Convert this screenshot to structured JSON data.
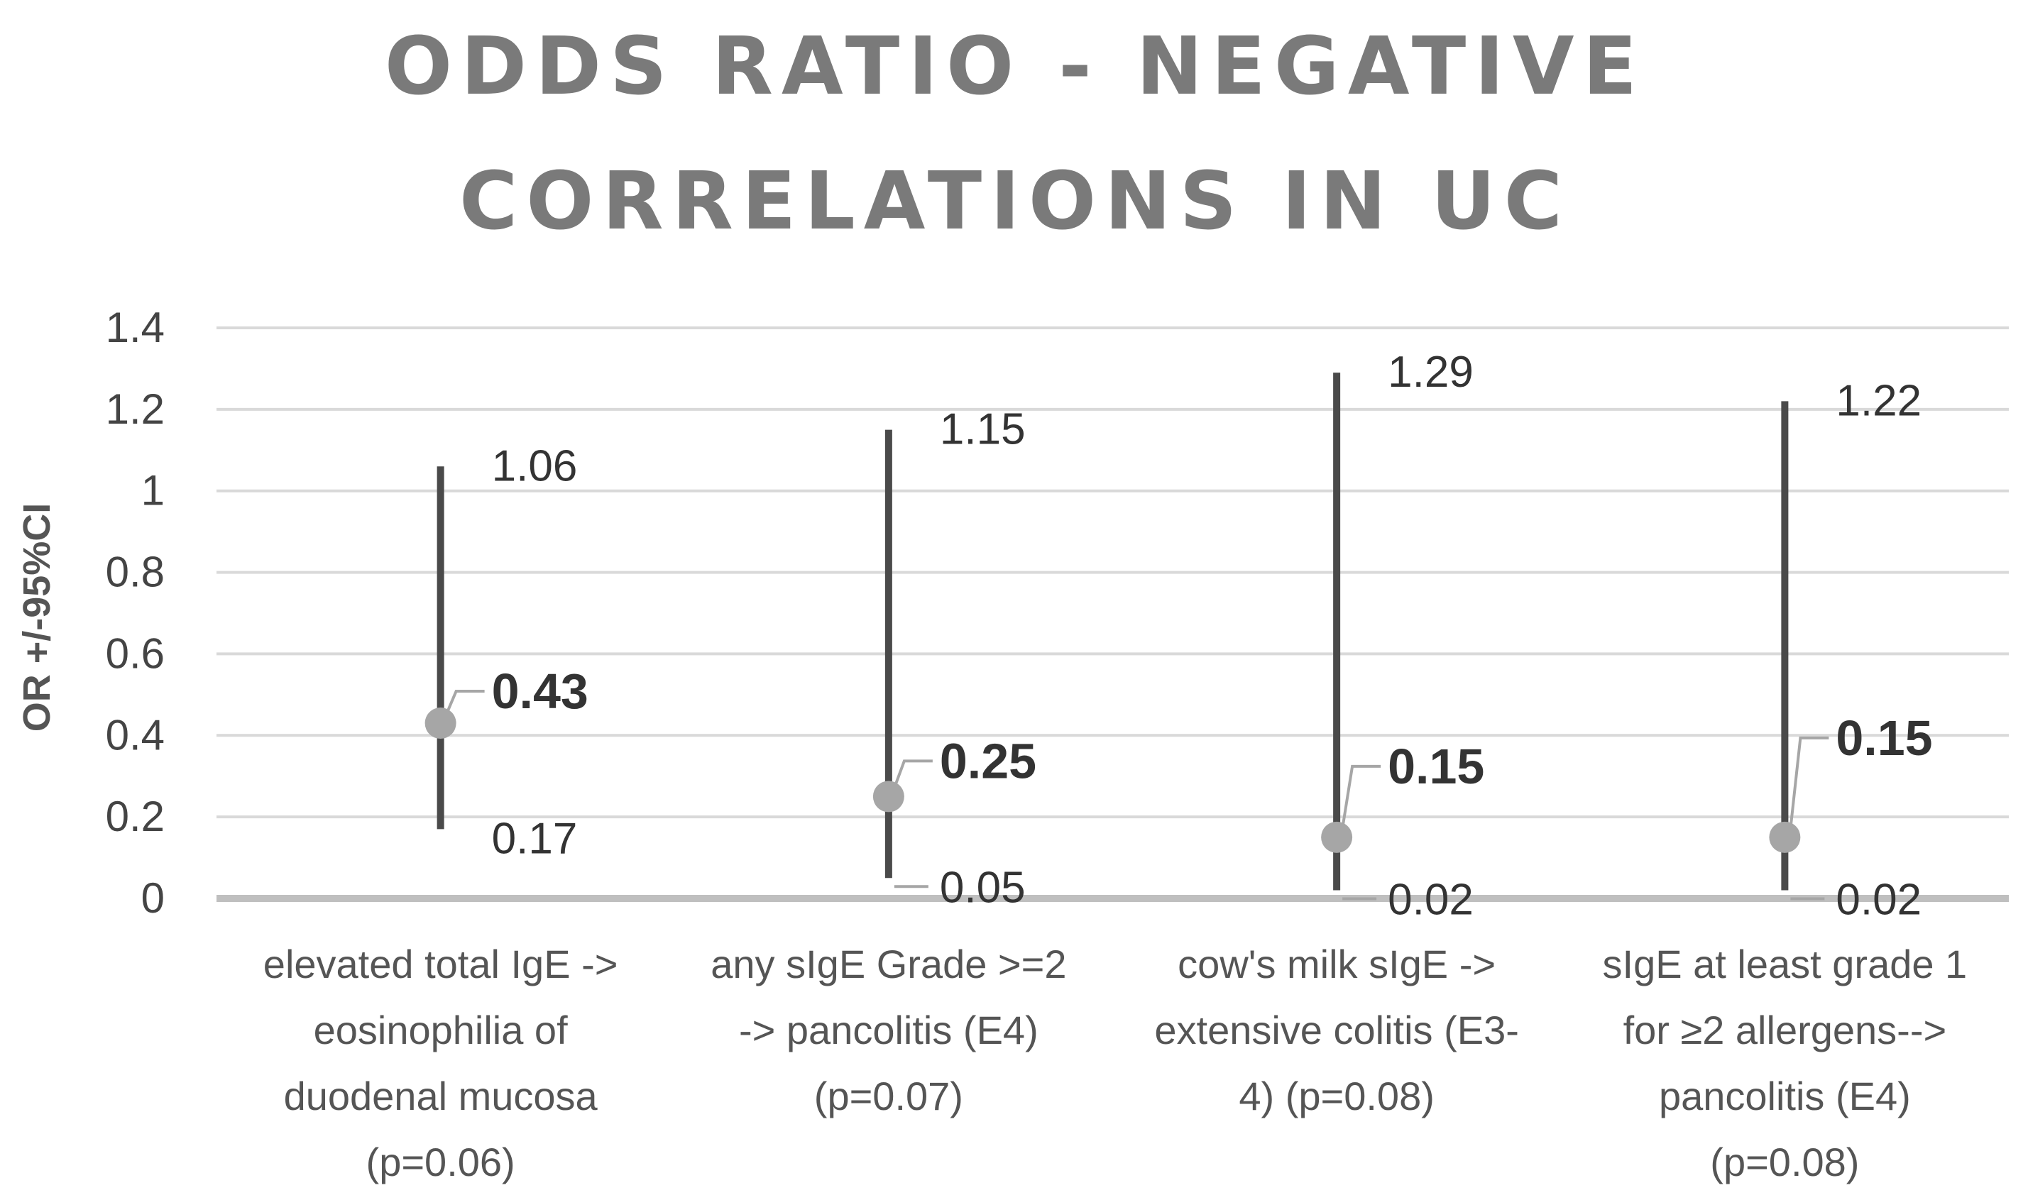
{
  "chart_data": {
    "type": "scatter",
    "title": [
      "ODDS RATIO - NEGATIVE",
      "CORRELATIONS IN UC"
    ],
    "ylabel": "OR +/-95%CI",
    "xlabel": "",
    "ylim": [
      0,
      1.4
    ],
    "yticks": [
      "0",
      "0.2",
      "0.4",
      "0.6",
      "0.8",
      "1",
      "1.2",
      "1.4"
    ],
    "grid": true,
    "categories": [
      [
        "elevated total IgE ->",
        "eosinophilia of",
        "duodenal mucosa",
        "(p=0.06)"
      ],
      [
        "any sIgE Grade >=2",
        "-> pancolitis  (E4)",
        "(p=0.07)"
      ],
      [
        "cow's milk sIgE ->",
        "extensive colitis (E3-",
        "4) (p=0.08)"
      ],
      [
        "sIgE at least grade 1",
        "for ≥2 allergens-->",
        "pancolitis (E4)",
        "(p=0.08)"
      ]
    ],
    "series": [
      {
        "name": "OR",
        "values": [
          0.43,
          0.25,
          0.15,
          0.15
        ],
        "labels": [
          "0.43",
          "0.25",
          "0.15",
          "0.15"
        ]
      },
      {
        "name": "Upper 95% CI",
        "values": [
          1.06,
          1.15,
          1.29,
          1.22
        ],
        "labels": [
          "1.06",
          "1.15",
          "1.29",
          "1.22"
        ]
      },
      {
        "name": "Lower 95% CI",
        "values": [
          0.17,
          0.05,
          0.02,
          0.02
        ],
        "labels": [
          "0.17",
          "0.05",
          "0.02",
          "0.02"
        ]
      }
    ],
    "colors": {
      "ci_line": "#4a4a4a",
      "point": "#a6a6a6",
      "grid": "#d9d9d9",
      "axis": "#bfbfbf",
      "title": "#7a7a7a"
    }
  }
}
